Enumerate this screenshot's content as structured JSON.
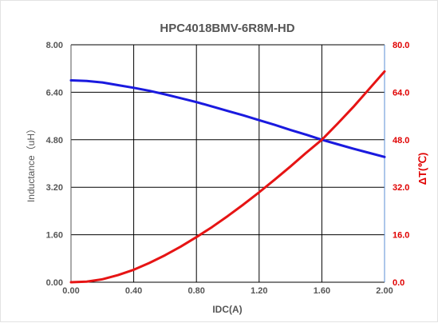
{
  "chart_data": {
    "type": "line",
    "title": "HPC4018BMV-6R8M-HD",
    "xlabel": "IDC(A)",
    "ylabel_left": "Inductance（uH）",
    "ylabel_right": "ΔT(℃)",
    "xlim": [
      0,
      2
    ],
    "ylim_left": [
      0,
      8
    ],
    "ylim_right": [
      0,
      80
    ],
    "x_ticks": [
      "0.00",
      "0.40",
      "0.80",
      "1.20",
      "1.60",
      "2.00"
    ],
    "y_left_ticks": [
      "0.00",
      "1.60",
      "3.20",
      "4.80",
      "6.40",
      "8.00"
    ],
    "y_right_ticks": [
      "0.0",
      "16.0",
      "32.0",
      "48.0",
      "64.0",
      "80.0"
    ],
    "grid": true,
    "colors": {
      "inductance": "#1a1adf",
      "temperature": "#e61414",
      "grid": "#000000",
      "axis_left": "#555555",
      "axis_right": "#e00000"
    },
    "series": [
      {
        "axis": "left",
        "x": [
          0,
          0.1,
          0.2,
          0.3,
          0.4,
          0.5,
          0.6,
          0.7,
          0.8,
          0.9,
          1.0,
          1.1,
          1.2,
          1.3,
          1.4,
          1.5,
          1.6,
          1.7,
          1.8,
          1.9,
          2.0
        ],
        "values": [
          6.8,
          6.78,
          6.73,
          6.64,
          6.55,
          6.45,
          6.33,
          6.2,
          6.07,
          5.92,
          5.77,
          5.62,
          5.46,
          5.3,
          5.13,
          4.97,
          4.8,
          4.65,
          4.5,
          4.36,
          4.22
        ]
      },
      {
        "axis": "right",
        "x": [
          0,
          0.1,
          0.2,
          0.3,
          0.4,
          0.5,
          0.6,
          0.7,
          0.8,
          0.9,
          1.0,
          1.1,
          1.2,
          1.3,
          1.4,
          1.5,
          1.6,
          1.7,
          1.8,
          1.9,
          2.0
        ],
        "values": [
          0,
          0.2,
          1.0,
          2.4,
          4.2,
          6.5,
          9.1,
          12.0,
          15.2,
          18.6,
          22.3,
          26.2,
          30.3,
          34.6,
          39.0,
          43.6,
          48.0,
          53.4,
          59.0,
          65.0,
          71.0
        ]
      }
    ]
  }
}
